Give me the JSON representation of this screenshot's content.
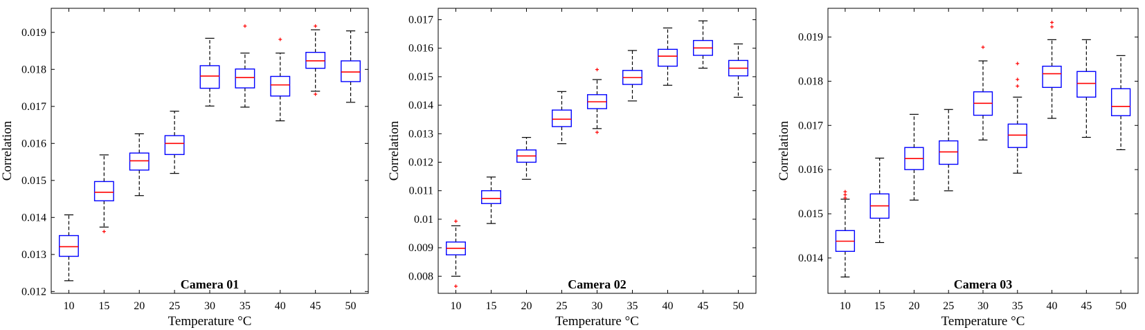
{
  "chart_data": [
    {
      "type": "box",
      "title": "Camera 01",
      "xlabel": "Temperature °C",
      "ylabel": "Correlation",
      "categories": [
        "10",
        "15",
        "20",
        "25",
        "30",
        "35",
        "40",
        "45",
        "50"
      ],
      "ylim": [
        0.01195,
        0.01965
      ],
      "yticks": [
        0.012,
        0.013,
        0.014,
        0.015,
        0.016,
        0.017,
        0.018,
        0.019
      ],
      "ytick_labels": [
        "0.012",
        "0.013",
        "0.014",
        "0.015",
        "0.016",
        "0.017",
        "0.018",
        "0.019"
      ],
      "boxes": [
        {
          "whisker_low": 0.01229,
          "q1": 0.01295,
          "median": 0.01321,
          "q3": 0.01351,
          "whisker_high": 0.01407,
          "outliers": []
        },
        {
          "whisker_low": 0.01374,
          "q1": 0.01445,
          "median": 0.01468,
          "q3": 0.01497,
          "whisker_high": 0.01569,
          "outliers": [
            0.01362
          ]
        },
        {
          "whisker_low": 0.01459,
          "q1": 0.01528,
          "median": 0.01553,
          "q3": 0.01574,
          "whisker_high": 0.01626,
          "outliers": []
        },
        {
          "whisker_low": 0.01519,
          "q1": 0.0157,
          "median": 0.016,
          "q3": 0.01621,
          "whisker_high": 0.01687,
          "outliers": []
        },
        {
          "whisker_low": 0.01701,
          "q1": 0.01749,
          "median": 0.01782,
          "q3": 0.0181,
          "whisker_high": 0.01884,
          "outliers": []
        },
        {
          "whisker_low": 0.01698,
          "q1": 0.0175,
          "median": 0.01778,
          "q3": 0.01801,
          "whisker_high": 0.01844,
          "outliers": [
            0.01917
          ]
        },
        {
          "whisker_low": 0.01661,
          "q1": 0.01728,
          "median": 0.01758,
          "q3": 0.01781,
          "whisker_high": 0.01844,
          "outliers": [
            0.01881
          ]
        },
        {
          "whisker_low": 0.01741,
          "q1": 0.01803,
          "median": 0.01823,
          "q3": 0.01846,
          "whisker_high": 0.01907,
          "outliers": [
            0.01917,
            0.01733
          ]
        },
        {
          "whisker_low": 0.01711,
          "q1": 0.01767,
          "median": 0.01793,
          "q3": 0.01823,
          "whisker_high": 0.01904,
          "outliers": []
        }
      ]
    },
    {
      "type": "box",
      "title": "Camera 02",
      "xlabel": "Temperature °C",
      "ylabel": "Correlation",
      "categories": [
        "10",
        "15",
        "20",
        "25",
        "30",
        "35",
        "40",
        "45",
        "50"
      ],
      "ylim": [
        0.0074,
        0.0174
      ],
      "yticks": [
        0.008,
        0.009,
        0.01,
        0.011,
        0.012,
        0.013,
        0.014,
        0.015,
        0.016,
        0.017
      ],
      "ytick_labels": [
        "0.008",
        "0.009",
        "0.01",
        "0.011",
        "0.012",
        "0.013",
        "0.014",
        "0.015",
        "0.016",
        "0.017"
      ],
      "boxes": [
        {
          "whisker_low": 0.008,
          "q1": 0.00875,
          "median": 0.00898,
          "q3": 0.0092,
          "whisker_high": 0.00977,
          "outliers": [
            0.00993,
            0.00765
          ]
        },
        {
          "whisker_low": 0.00985,
          "q1": 0.01055,
          "median": 0.01073,
          "q3": 0.011,
          "whisker_high": 0.01148,
          "outliers": []
        },
        {
          "whisker_low": 0.0114,
          "q1": 0.012,
          "median": 0.01222,
          "q3": 0.01243,
          "whisker_high": 0.01287,
          "outliers": []
        },
        {
          "whisker_low": 0.01265,
          "q1": 0.01325,
          "median": 0.01351,
          "q3": 0.01383,
          "whisker_high": 0.01448,
          "outliers": []
        },
        {
          "whisker_low": 0.01318,
          "q1": 0.01388,
          "median": 0.01412,
          "q3": 0.01437,
          "whisker_high": 0.0149,
          "outliers": [
            0.01525,
            0.01305
          ]
        },
        {
          "whisker_low": 0.01415,
          "q1": 0.01473,
          "median": 0.01497,
          "q3": 0.01522,
          "whisker_high": 0.01592,
          "outliers": []
        },
        {
          "whisker_low": 0.0147,
          "q1": 0.01537,
          "median": 0.01572,
          "q3": 0.01596,
          "whisker_high": 0.01671,
          "outliers": []
        },
        {
          "whisker_low": 0.0153,
          "q1": 0.01575,
          "median": 0.01601,
          "q3": 0.01627,
          "whisker_high": 0.01696,
          "outliers": []
        },
        {
          "whisker_low": 0.01428,
          "q1": 0.01503,
          "median": 0.0153,
          "q3": 0.01557,
          "whisker_high": 0.01615,
          "outliers": []
        }
      ]
    },
    {
      "type": "box",
      "title": "Camera 03",
      "xlabel": "Temperature °C",
      "ylabel": "Correlation",
      "categories": [
        "10",
        "15",
        "20",
        "25",
        "30",
        "35",
        "40",
        "45",
        "50"
      ],
      "ylim": [
        0.0132,
        0.01965
      ],
      "yticks": [
        0.014,
        0.015,
        0.016,
        0.017,
        0.018,
        0.019
      ],
      "ytick_labels": [
        "0.014",
        "0.015",
        "0.016",
        "0.017",
        "0.018",
        "0.019"
      ],
      "boxes": [
        {
          "whisker_low": 0.01357,
          "q1": 0.01415,
          "median": 0.01438,
          "q3": 0.01462,
          "whisker_high": 0.01533,
          "outliers": [
            0.0155,
            0.01543,
            0.01536
          ]
        },
        {
          "whisker_low": 0.01435,
          "q1": 0.0149,
          "median": 0.01518,
          "q3": 0.01545,
          "whisker_high": 0.01626,
          "outliers": []
        },
        {
          "whisker_low": 0.01531,
          "q1": 0.016,
          "median": 0.01625,
          "q3": 0.0165,
          "whisker_high": 0.01725,
          "outliers": []
        },
        {
          "whisker_low": 0.01552,
          "q1": 0.01612,
          "median": 0.0164,
          "q3": 0.01665,
          "whisker_high": 0.01736,
          "outliers": []
        },
        {
          "whisker_low": 0.01667,
          "q1": 0.01723,
          "median": 0.0175,
          "q3": 0.01776,
          "whisker_high": 0.01846,
          "outliers": [
            0.01877
          ]
        },
        {
          "whisker_low": 0.01592,
          "q1": 0.0165,
          "median": 0.01678,
          "q3": 0.01703,
          "whisker_high": 0.01764,
          "outliers": [
            0.0184,
            0.01804,
            0.01789
          ]
        },
        {
          "whisker_low": 0.01716,
          "q1": 0.01786,
          "median": 0.01817,
          "q3": 0.01834,
          "whisker_high": 0.01894,
          "outliers": [
            0.01933,
            0.01923
          ]
        },
        {
          "whisker_low": 0.01673,
          "q1": 0.01764,
          "median": 0.01795,
          "q3": 0.01822,
          "whisker_high": 0.01894,
          "outliers": []
        },
        {
          "whisker_low": 0.01645,
          "q1": 0.01722,
          "median": 0.01743,
          "q3": 0.01783,
          "whisker_high": 0.01858,
          "outliers": []
        }
      ]
    }
  ]
}
